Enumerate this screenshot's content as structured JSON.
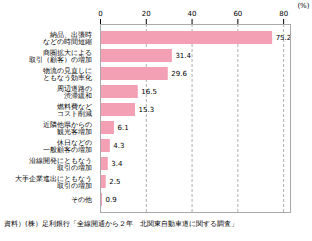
{
  "chart_data": {
    "type": "bar",
    "orientation": "horizontal",
    "caption": "資料）(株）足利銀行「全線開通から２年　北関東自動車道に関する調査」",
    "xlabel": "(%)",
    "categories": [
      "納品、出張時\nなどの時間短縮",
      "商圏拡大による\n取引（顧客）の増加",
      "物流の見直しに\nともなう効率化",
      "周辺道路の\n渋滞緩和",
      "燃料費など\nコスト削減",
      "近隣他県からの\n観光客増加",
      "休日などの\n一般顧客の増加",
      "沿線開発にともなう\n取引の増加",
      "大手企業進出にともなう\n取引の増加",
      "その他"
    ],
    "values": [
      75.2,
      31.4,
      29.6,
      16.5,
      15.3,
      6.1,
      4.3,
      3.4,
      2.5,
      0.9
    ],
    "color": "#f4a0b4",
    "xlim": [
      0,
      83
    ],
    "xticks": [
      0,
      20,
      40,
      60,
      80
    ],
    "grid": true,
    "data_labels": true
  }
}
